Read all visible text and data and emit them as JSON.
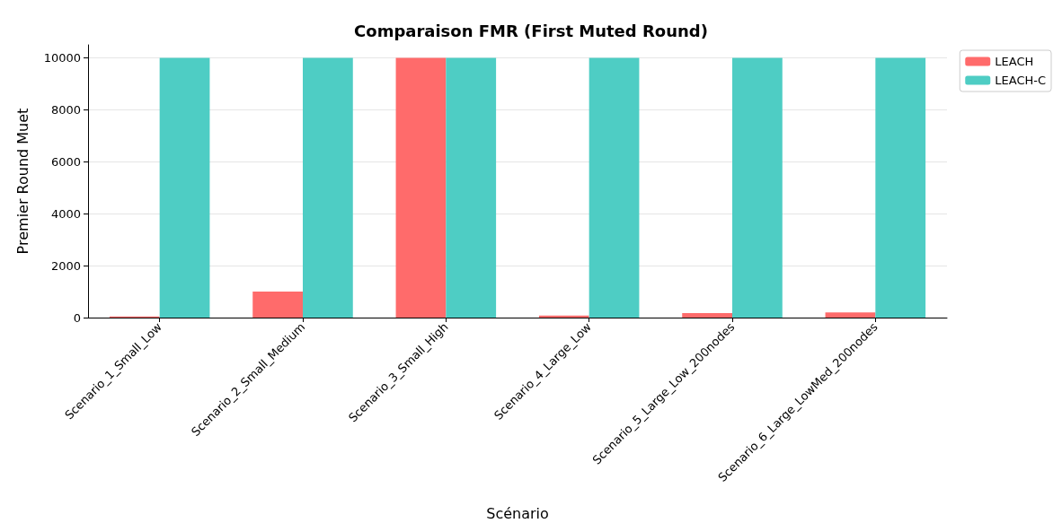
{
  "chart_data": {
    "type": "bar",
    "title": "Comparaison FMR (First Muted Round)",
    "xlabel": "Scénario",
    "ylabel": "Premier Round Muet",
    "categories": [
      "Scenario_1_Small_Low",
      "Scenario_2_Small_Medium",
      "Scenario_3_Small_High",
      "Scenario_4_Large_Low",
      "Scenario_5_Large_Low_200nodes",
      "Scenario_6_Large_LowMed_200nodes"
    ],
    "series": [
      {
        "name": "LEACH",
        "color": "#ff6b6b",
        "values": [
          40,
          1000,
          10000,
          80,
          170,
          200
        ]
      },
      {
        "name": "LEACH-C",
        "color": "#4ecdc4",
        "values": [
          10000,
          10000,
          10000,
          10000,
          10000,
          10000
        ]
      }
    ],
    "ylim": [
      0,
      10500
    ],
    "yticks": [
      0,
      2000,
      4000,
      6000,
      8000,
      10000
    ],
    "grid": "y",
    "legend": "top right"
  }
}
